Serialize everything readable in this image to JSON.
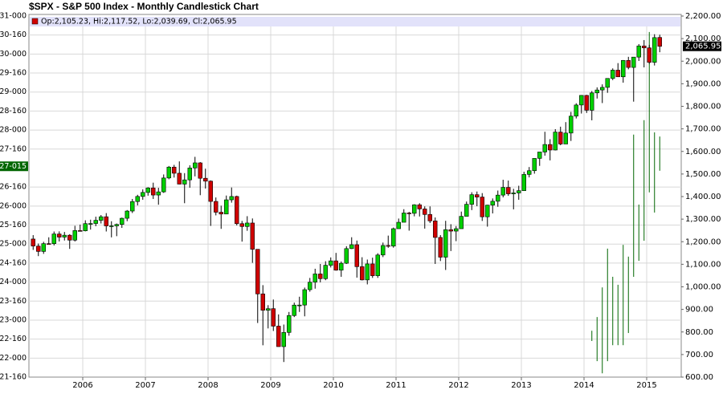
{
  "chart_data": {
    "type": "candlestick",
    "title": "$SPX - S&P 500 Index - Monthly Candlestick Chart",
    "legend_text": "Op:2,105.23, Hi:2,117.52, Lo:2,039.69, Cl:2,065.95",
    "up_color": "#00d000",
    "down_color": "#d00000",
    "bar_color": "#006600",
    "grid": true,
    "categories": [
      null,
      null,
      null,
      null,
      null,
      null,
      null,
      null,
      null,
      null,
      "2006",
      null,
      null,
      null,
      null,
      null,
      null,
      null,
      null,
      null,
      null,
      null,
      "2007",
      null,
      null,
      null,
      null,
      null,
      null,
      null,
      null,
      null,
      null,
      null,
      "2008",
      null,
      null,
      null,
      null,
      null,
      null,
      null,
      null,
      null,
      null,
      null,
      "2009",
      null,
      null,
      null,
      null,
      null,
      null,
      null,
      null,
      null,
      null,
      null,
      "2010",
      null,
      null,
      null,
      null,
      null,
      null,
      null,
      null,
      null,
      null,
      null,
      "2011",
      null,
      null,
      null,
      null,
      null,
      null,
      null,
      null,
      null,
      null,
      null,
      "2012",
      null,
      null,
      null,
      null,
      null,
      null,
      null,
      null,
      null,
      null,
      null,
      "2013",
      null,
      null,
      null,
      null,
      null,
      null,
      null,
      null,
      null,
      null,
      null,
      "2014",
      null,
      null,
      null,
      null,
      null,
      null,
      null,
      null,
      null,
      null,
      null,
      "2015",
      null,
      null
    ],
    "open": [
      1211.92,
      1180.59,
      1156.85,
      1191.5,
      1191.33,
      1234.18,
      1220.33,
      1228.81,
      1207.01,
      1249.48,
      1248.29,
      1280.08,
      1280.66,
      1294.83,
      1310.61,
      1270.09,
      1270.2,
      1276.66,
      1303.82,
      1335.85,
      1377.94,
      1400.63,
      1418.3,
      1438.24,
      1406.82,
      1420.86,
      1482.37,
      1530.62,
      1503.35,
      1455.27,
      1473.99,
      1526.75,
      1549.38,
      1481.14,
      1468.36,
      1378.55,
      1330.63,
      1322.7,
      1385.59,
      1400.38,
      1280.0,
      1267.38,
      1282.83,
      1166.36,
      968.75,
      896.24,
      903.25,
      825.88,
      735.09,
      797.87,
      872.81,
      919.14,
      919.32,
      987.48,
      1020.62,
      1057.08,
      1036.19,
      1095.63,
      1115.1,
      1073.87,
      1104.49,
      1169.43,
      1186.69,
      1089.41,
      1030.71,
      1101.6,
      1049.33,
      1141.2,
      1183.26,
      1180.55,
      1257.64,
      1286.12,
      1327.22,
      1325.83,
      1363.61,
      1345.2,
      1320.64,
      1292.28,
      1218.89,
      1131.42,
      1253.3,
      1246.96,
      1257.6,
      1312.41,
      1365.68,
      1408.47,
      1397.91,
      1310.33,
      1362.16,
      1379.32,
      1406.58,
      1440.67,
      1412.16,
      1416.18,
      1426.19,
      1498.11,
      1514.68,
      1569.19,
      1597.57,
      1630.74,
      1606.28,
      1685.73,
      1632.97,
      1681.55,
      1756.54,
      1805.81,
      1848.36,
      1782.59,
      1859.45,
      1872.34,
      1883.95,
      1923.57,
      1960.23,
      1930.67,
      2003.37,
      1972.29,
      2018.05,
      2067.56,
      2058.9,
      1994.99,
      2105.23
    ],
    "high": [
      1229.11,
      1191.88,
      1199.56,
      1219.59,
      1245.15,
      1245.86,
      1243.13,
      1233.34,
      1270.64,
      1275.8,
      1294.9,
      1297.57,
      1310.88,
      1318.16,
      1326.7,
      1290.68,
      1280.42,
      1306.74,
      1340.28,
      1389.45,
      1407.89,
      1431.81,
      1441.61,
      1461.57,
      1438.89,
      1498.02,
      1535.56,
      1540.56,
      1555.9,
      1503.89,
      1538.74,
      1576.09,
      1552.76,
      1523.57,
      1471.77,
      1396.02,
      1359.68,
      1404.57,
      1440.24,
      1404.05,
      1292.17,
      1313.15,
      1303.04,
      1167.03,
      1007.51,
      918.85,
      943.85,
      877.86,
      832.98,
      888.7,
      930.17,
      956.23,
      996.68,
      1039.47,
      1080.15,
      1101.36,
      1113.69,
      1130.38,
      1150.45,
      1112.42,
      1180.16,
      1219.8,
      1205.13,
      1131.23,
      1120.95,
      1129.24,
      1148.9,
      1196.14,
      1227.08,
      1262.6,
      1302.67,
      1344.07,
      1332.28,
      1366.04,
      1370.58,
      1356.48,
      1356.48,
      1307.38,
      1229.29,
      1292.66,
      1277.55,
      1269.37,
      1333.47,
      1378.04,
      1419.15,
      1422.38,
      1415.32,
      1363.46,
      1391.74,
      1426.68,
      1474.51,
      1470.96,
      1434.27,
      1448.0,
      1509.94,
      1530.94,
      1570.28,
      1597.57,
      1687.18,
      1654.19,
      1698.78,
      1709.67,
      1729.86,
      1775.22,
      1813.55,
      1849.44,
      1850.84,
      1867.92,
      1883.97,
      1897.28,
      1924.03,
      1968.17,
      1991.39,
      2005.04,
      2019.26,
      2018.19,
      2075.76,
      2093.55,
      2072.36,
      2119.59,
      2117.52
    ],
    "low": [
      1163.69,
      1136.15,
      1146.18,
      1188.3,
      1183.55,
      1201.07,
      1205.35,
      1168.2,
      1201.07,
      1246.59,
      1245.74,
      1253.61,
      1268.42,
      1280.74,
      1245.34,
      1219.29,
      1224.54,
      1261.3,
      1290.93,
      1327.1,
      1360.98,
      1385.93,
      1403.97,
      1389.42,
      1363.98,
      1416.37,
      1476.7,
      1484.18,
      1454.25,
      1370.6,
      1439.29,
      1489.56,
      1406.1,
      1435.65,
      1270.05,
      1316.75,
      1256.98,
      1324.35,
      1373.07,
      1272.0,
      1200.44,
      1248.48,
      1106.39,
      839.8,
      741.02,
      815.69,
      804.3,
      734.52,
      666.79,
      783.32,
      866.1,
      888.86,
      869.32,
      978.51,
      991.97,
      1019.95,
      1029.38,
      1085.89,
      1071.59,
      1044.5,
      1101.36,
      1167.71,
      1040.78,
      1028.33,
      1010.91,
      1039.7,
      1039.78,
      1131.87,
      1173.0,
      1173.64,
      1257.62,
      1286.12,
      1249.05,
      1312.47,
      1311.8,
      1258.07,
      1282.86,
      1101.54,
      1114.22,
      1074.77,
      1158.66,
      1202.37,
      1257.6,
      1312.41,
      1340.03,
      1357.38,
      1291.98,
      1266.74,
      1325.41,
      1354.65,
      1396.56,
      1403.28,
      1343.35,
      1385.86,
      1426.19,
      1485.01,
      1501.48,
      1536.03,
      1581.28,
      1560.33,
      1604.57,
      1627.47,
      1633.41,
      1646.47,
      1746.2,
      1767.99,
      1770.45,
      1737.92,
      1834.44,
      1814.36,
      1859.79,
      1915.98,
      1930.67,
      1904.78,
      1964.04,
      1820.66,
      2001.01,
      1972.56,
      1988.12,
      1980.9,
      2039.69
    ],
    "close": [
      1180.59,
      1156.85,
      1191.5,
      1191.33,
      1234.18,
      1220.33,
      1228.81,
      1207.01,
      1249.48,
      1248.29,
      1280.08,
      1280.66,
      1294.83,
      1310.61,
      1270.09,
      1270.2,
      1276.66,
      1303.82,
      1335.85,
      1377.94,
      1400.63,
      1418.3,
      1438.24,
      1406.82,
      1420.86,
      1482.37,
      1530.62,
      1503.35,
      1455.27,
      1473.99,
      1526.75,
      1549.38,
      1481.14,
      1468.36,
      1378.55,
      1330.63,
      1322.7,
      1385.59,
      1400.38,
      1280.0,
      1267.38,
      1282.83,
      1166.36,
      968.75,
      896.24,
      903.25,
      825.88,
      735.09,
      797.87,
      872.81,
      919.14,
      919.32,
      987.48,
      1020.62,
      1057.08,
      1036.19,
      1095.63,
      1115.1,
      1073.87,
      1104.49,
      1169.43,
      1186.69,
      1089.41,
      1030.71,
      1101.6,
      1049.33,
      1141.2,
      1183.26,
      1180.55,
      1257.64,
      1286.12,
      1327.22,
      1325.83,
      1363.61,
      1345.2,
      1320.64,
      1292.28,
      1218.89,
      1131.42,
      1253.3,
      1246.96,
      1257.6,
      1312.41,
      1365.68,
      1408.47,
      1397.91,
      1310.33,
      1362.16,
      1379.32,
      1406.58,
      1440.67,
      1412.16,
      1416.18,
      1426.19,
      1498.11,
      1514.68,
      1569.19,
      1597.57,
      1630.74,
      1606.28,
      1685.73,
      1632.97,
      1681.55,
      1756.54,
      1805.81,
      1848.36,
      1782.59,
      1859.45,
      1872.34,
      1883.95,
      1923.57,
      1960.23,
      1930.67,
      2003.37,
      1972.29,
      2018.05,
      2067.56,
      2058.9,
      1994.99,
      2104.5,
      2065.95
    ],
    "bar_high": [
      null,
      null,
      null,
      null,
      null,
      null,
      null,
      null,
      null,
      null,
      null,
      null,
      null,
      null,
      null,
      null,
      null,
      null,
      null,
      null,
      null,
      null,
      null,
      null,
      null,
      null,
      null,
      null,
      null,
      null,
      null,
      null,
      null,
      null,
      null,
      null,
      null,
      null,
      null,
      null,
      null,
      null,
      null,
      null,
      null,
      null,
      null,
      null,
      null,
      null,
      null,
      null,
      null,
      null,
      null,
      null,
      null,
      null,
      null,
      null,
      null,
      null,
      null,
      null,
      null,
      null,
      null,
      null,
      null,
      null,
      null,
      null,
      null,
      null,
      null,
      null,
      null,
      null,
      null,
      null,
      null,
      null,
      null,
      null,
      null,
      null,
      null,
      null,
      null,
      null,
      null,
      null,
      null,
      null,
      null,
      null,
      null,
      null,
      null,
      null,
      null,
      null,
      null,
      null,
      null,
      null,
      null,
      22.72,
      23.08,
      23.86,
      24.88,
      24.14,
      23.93,
      24.98,
      24.67,
      27.88,
      26.04,
      28.26,
      30.58,
      27.94,
      27.83
    ],
    "bar_low": [
      null,
      null,
      null,
      null,
      null,
      null,
      null,
      null,
      null,
      null,
      null,
      null,
      null,
      null,
      null,
      null,
      null,
      null,
      null,
      null,
      null,
      null,
      null,
      null,
      null,
      null,
      null,
      null,
      null,
      null,
      null,
      null,
      null,
      null,
      null,
      null,
      null,
      null,
      null,
      null,
      null,
      null,
      null,
      null,
      null,
      null,
      null,
      null,
      null,
      null,
      null,
      null,
      null,
      null,
      null,
      null,
      null,
      null,
      null,
      null,
      null,
      null,
      null,
      null,
      null,
      null,
      null,
      null,
      null,
      null,
      null,
      null,
      null,
      null,
      null,
      null,
      null,
      null,
      null,
      null,
      null,
      null,
      null,
      null,
      null,
      null,
      null,
      null,
      null,
      null,
      null,
      null,
      null,
      null,
      null,
      null,
      null,
      null,
      null,
      null,
      null,
      null,
      null,
      null,
      null,
      null,
      null,
      22.45,
      21.92,
      21.6,
      21.92,
      22.34,
      22.34,
      22.34,
      22.66,
      24.14,
      24.56,
      25.09,
      26.36,
      25.83,
      26.93
    ],
    "ylim": [
      600,
      2200
    ],
    "yticks": [
      {
        "value": 600,
        "label": "600.00"
      },
      {
        "value": 700,
        "label": "700.00"
      },
      {
        "value": 800,
        "label": "800.00"
      },
      {
        "value": 900,
        "label": "900.00"
      },
      {
        "value": 1000,
        "label": "1,000.00"
      },
      {
        "value": 1100,
        "label": "1,100.00"
      },
      {
        "value": 1200,
        "label": "1,200.00"
      },
      {
        "value": 1300,
        "label": "1,300.00"
      },
      {
        "value": 1400,
        "label": "1,400.00"
      },
      {
        "value": 1500,
        "label": "1,500.00"
      },
      {
        "value": 1600,
        "label": "1,600.00"
      },
      {
        "value": 1700,
        "label": "1,700.00"
      },
      {
        "value": 1800,
        "label": "1,800.00"
      },
      {
        "value": 1900,
        "label": "1,900.00"
      },
      {
        "value": 2000,
        "label": "2,000.00"
      },
      {
        "value": 2100,
        "label": "2,100.00"
      },
      {
        "value": 2200,
        "label": "2,200.00"
      }
    ],
    "last_label": {
      "value": 2065.95,
      "label": "2,065.95"
    },
    "y2lim": [
      21.5,
      31
    ],
    "y2ticks": [
      {
        "value": 21.5,
        "label": "21-160"
      },
      {
        "value": 22,
        "label": "22-000"
      },
      {
        "value": 22.5,
        "label": "22-160"
      },
      {
        "value": 23,
        "label": "23-000"
      },
      {
        "value": 23.5,
        "label": "23-160"
      },
      {
        "value": 24,
        "label": "24-000"
      },
      {
        "value": 24.5,
        "label": "24-160"
      },
      {
        "value": 25,
        "label": "25-000"
      },
      {
        "value": 25.5,
        "label": "25-160"
      },
      {
        "value": 26,
        "label": "26-000"
      },
      {
        "value": 26.5,
        "label": "26-160"
      },
      {
        "value": 27.5,
        "label": "27-160"
      },
      {
        "value": 28,
        "label": "28-000"
      },
      {
        "value": 28.5,
        "label": "28-160"
      },
      {
        "value": 29,
        "label": "29-000"
      },
      {
        "value": 29.5,
        "label": "29-160"
      },
      {
        "value": 30,
        "label": "30-000"
      },
      {
        "value": 30.5,
        "label": "30-160"
      },
      {
        "value": 31,
        "label": "31-000"
      }
    ],
    "y2_last_label": {
      "value": 27.046875,
      "label": "27-015"
    }
  }
}
